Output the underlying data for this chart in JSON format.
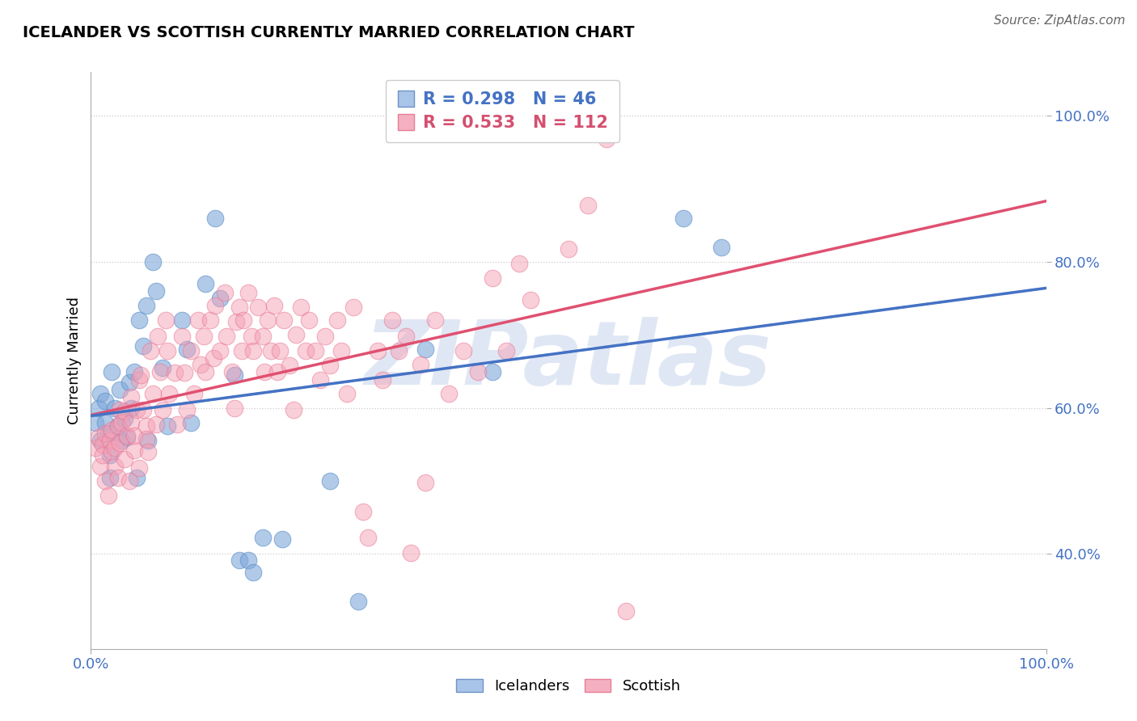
{
  "title": "ICELANDER VS SCOTTISH CURRENTLY MARRIED CORRELATION CHART",
  "source": "Source: ZipAtlas.com",
  "ylabel": "Currently Married",
  "y_tick_vals": [
    0.4,
    0.6,
    0.8,
    1.0
  ],
  "x_range": [
    0.0,
    1.0
  ],
  "y_range": [
    0.27,
    1.06
  ],
  "r_icelander": 0.298,
  "n_icelander": 46,
  "r_scottish": 0.533,
  "n_scottish": 112,
  "blue_color": "#7da7d9",
  "blue_edge": "#5b8ec9",
  "pink_color": "#f4a0b5",
  "pink_edge": "#e8708e",
  "line_blue": "#4472c4",
  "line_pink": "#e05070",
  "line_dash_color": "#9ab0d0",
  "legend_blue_text": "#4472c4",
  "legend_pink_text": "#d45070",
  "watermark": "ZIPatlas",
  "watermark_color": "#ccd8ee",
  "icelander_points": [
    [
      0.005,
      0.58
    ],
    [
      0.008,
      0.6
    ],
    [
      0.01,
      0.62
    ],
    [
      0.01,
      0.555
    ],
    [
      0.015,
      0.58
    ],
    [
      0.015,
      0.61
    ],
    [
      0.018,
      0.565
    ],
    [
      0.02,
      0.535
    ],
    [
      0.02,
      0.505
    ],
    [
      0.022,
      0.65
    ],
    [
      0.025,
      0.6
    ],
    [
      0.028,
      0.575
    ],
    [
      0.03,
      0.625
    ],
    [
      0.032,
      0.555
    ],
    [
      0.035,
      0.585
    ],
    [
      0.038,
      0.56
    ],
    [
      0.04,
      0.635
    ],
    [
      0.042,
      0.6
    ],
    [
      0.045,
      0.65
    ],
    [
      0.048,
      0.505
    ],
    [
      0.05,
      0.72
    ],
    [
      0.055,
      0.685
    ],
    [
      0.058,
      0.74
    ],
    [
      0.06,
      0.555
    ],
    [
      0.065,
      0.8
    ],
    [
      0.068,
      0.76
    ],
    [
      0.075,
      0.655
    ],
    [
      0.08,
      0.575
    ],
    [
      0.095,
      0.72
    ],
    [
      0.1,
      0.68
    ],
    [
      0.105,
      0.58
    ],
    [
      0.12,
      0.77
    ],
    [
      0.13,
      0.86
    ],
    [
      0.135,
      0.75
    ],
    [
      0.15,
      0.645
    ],
    [
      0.155,
      0.392
    ],
    [
      0.165,
      0.392
    ],
    [
      0.17,
      0.375
    ],
    [
      0.18,
      0.422
    ],
    [
      0.2,
      0.42
    ],
    [
      0.25,
      0.5
    ],
    [
      0.28,
      0.335
    ],
    [
      0.35,
      0.68
    ],
    [
      0.42,
      0.65
    ],
    [
      0.62,
      0.86
    ],
    [
      0.66,
      0.82
    ]
  ],
  "scottish_points": [
    [
      0.005,
      0.545
    ],
    [
      0.008,
      0.56
    ],
    [
      0.01,
      0.52
    ],
    [
      0.012,
      0.55
    ],
    [
      0.012,
      0.535
    ],
    [
      0.015,
      0.565
    ],
    [
      0.015,
      0.5
    ],
    [
      0.018,
      0.48
    ],
    [
      0.02,
      0.555
    ],
    [
      0.022,
      0.54
    ],
    [
      0.022,
      0.57
    ],
    [
      0.025,
      0.545
    ],
    [
      0.025,
      0.52
    ],
    [
      0.028,
      0.505
    ],
    [
      0.028,
      0.575
    ],
    [
      0.03,
      0.598
    ],
    [
      0.03,
      0.552
    ],
    [
      0.032,
      0.58
    ],
    [
      0.035,
      0.595
    ],
    [
      0.035,
      0.53
    ],
    [
      0.038,
      0.562
    ],
    [
      0.04,
      0.5
    ],
    [
      0.042,
      0.615
    ],
    [
      0.042,
      0.58
    ],
    [
      0.045,
      0.542
    ],
    [
      0.045,
      0.562
    ],
    [
      0.048,
      0.598
    ],
    [
      0.05,
      0.638
    ],
    [
      0.05,
      0.518
    ],
    [
      0.052,
      0.645
    ],
    [
      0.055,
      0.598
    ],
    [
      0.058,
      0.575
    ],
    [
      0.058,
      0.558
    ],
    [
      0.06,
      0.54
    ],
    [
      0.062,
      0.678
    ],
    [
      0.065,
      0.62
    ],
    [
      0.068,
      0.578
    ],
    [
      0.07,
      0.698
    ],
    [
      0.072,
      0.65
    ],
    [
      0.075,
      0.598
    ],
    [
      0.078,
      0.72
    ],
    [
      0.08,
      0.678
    ],
    [
      0.082,
      0.62
    ],
    [
      0.088,
      0.648
    ],
    [
      0.09,
      0.578
    ],
    [
      0.095,
      0.698
    ],
    [
      0.098,
      0.648
    ],
    [
      0.1,
      0.598
    ],
    [
      0.105,
      0.678
    ],
    [
      0.108,
      0.62
    ],
    [
      0.112,
      0.72
    ],
    [
      0.115,
      0.66
    ],
    [
      0.118,
      0.698
    ],
    [
      0.12,
      0.65
    ],
    [
      0.125,
      0.72
    ],
    [
      0.128,
      0.668
    ],
    [
      0.13,
      0.74
    ],
    [
      0.135,
      0.678
    ],
    [
      0.14,
      0.758
    ],
    [
      0.142,
      0.698
    ],
    [
      0.148,
      0.65
    ],
    [
      0.15,
      0.6
    ],
    [
      0.152,
      0.718
    ],
    [
      0.155,
      0.738
    ],
    [
      0.158,
      0.678
    ],
    [
      0.16,
      0.72
    ],
    [
      0.165,
      0.758
    ],
    [
      0.168,
      0.698
    ],
    [
      0.17,
      0.678
    ],
    [
      0.175,
      0.738
    ],
    [
      0.18,
      0.698
    ],
    [
      0.182,
      0.65
    ],
    [
      0.185,
      0.72
    ],
    [
      0.188,
      0.678
    ],
    [
      0.192,
      0.74
    ],
    [
      0.195,
      0.65
    ],
    [
      0.198,
      0.678
    ],
    [
      0.202,
      0.72
    ],
    [
      0.208,
      0.658
    ],
    [
      0.212,
      0.598
    ],
    [
      0.215,
      0.7
    ],
    [
      0.22,
      0.738
    ],
    [
      0.225,
      0.678
    ],
    [
      0.228,
      0.72
    ],
    [
      0.235,
      0.678
    ],
    [
      0.24,
      0.638
    ],
    [
      0.245,
      0.698
    ],
    [
      0.25,
      0.658
    ],
    [
      0.258,
      0.72
    ],
    [
      0.262,
      0.678
    ],
    [
      0.268,
      0.62
    ],
    [
      0.275,
      0.738
    ],
    [
      0.285,
      0.458
    ],
    [
      0.29,
      0.422
    ],
    [
      0.3,
      0.678
    ],
    [
      0.305,
      0.638
    ],
    [
      0.315,
      0.72
    ],
    [
      0.322,
      0.678
    ],
    [
      0.33,
      0.698
    ],
    [
      0.335,
      0.402
    ],
    [
      0.345,
      0.66
    ],
    [
      0.35,
      0.498
    ],
    [
      0.36,
      0.72
    ],
    [
      0.375,
      0.62
    ],
    [
      0.39,
      0.678
    ],
    [
      0.405,
      0.65
    ],
    [
      0.42,
      0.778
    ],
    [
      0.435,
      0.678
    ],
    [
      0.448,
      0.798
    ],
    [
      0.46,
      0.748
    ],
    [
      0.5,
      0.818
    ],
    [
      0.52,
      0.878
    ],
    [
      0.54,
      0.968
    ],
    [
      0.56,
      0.322
    ]
  ]
}
